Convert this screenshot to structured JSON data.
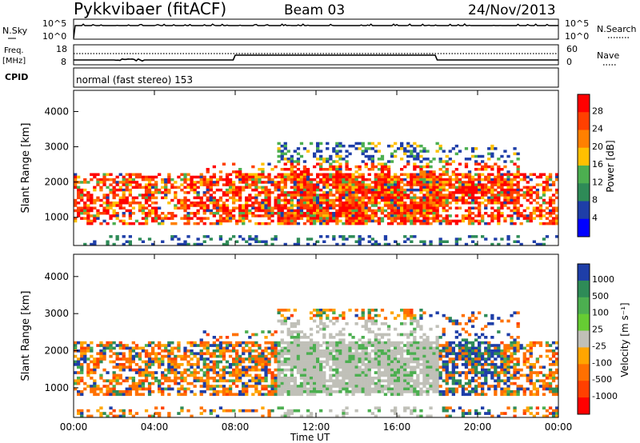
{
  "header": {
    "station": "Pykkvibaer (fitACF)",
    "beam": "Beam 03",
    "date": "24/Nov/2013"
  },
  "top_panels": {
    "nsky_label": "N.Sky",
    "nsky_top": "10^5",
    "nsky_bottom": "10^0",
    "nsearch_label": "N.Search",
    "nsearch_top": "10^5",
    "nsearch_bottom": "10^0",
    "freq_label_1": "Freq.",
    "freq_label_2": "[MHz]",
    "freq_ticks": [
      "18",
      "8"
    ],
    "nave_label": "Nave",
    "nave_ticks": [
      "60",
      "0"
    ],
    "cpid_label": "CPID",
    "cpid_text": "normal (fast stereo) 153"
  },
  "chart_data": [
    {
      "type": "heatmap",
      "name": "power",
      "ylabel": "Slant Range [km]",
      "yticks": [
        "4000",
        "3000",
        "2000",
        "1000"
      ],
      "ylim": [
        200,
        4600
      ],
      "xlim": [
        0,
        24
      ],
      "colorbar_label": "Power [dB]",
      "colorbar_ticks": [
        "28",
        "24",
        "20",
        "16",
        "12",
        "8",
        "4"
      ],
      "colorbar_colors": [
        "#ff0000",
        "#ff4000",
        "#ff8000",
        "#ffc000",
        "#4caf50",
        "#2e8b57",
        "#1e3ea8",
        "#0000ff"
      ]
    },
    {
      "type": "heatmap",
      "name": "velocity",
      "ylabel": "Slant Range [km]",
      "yticks": [
        "4000",
        "3000",
        "2000",
        "1000"
      ],
      "ylim": [
        200,
        4600
      ],
      "xlim": [
        0,
        24
      ],
      "colorbar_label": "Velocity [m s⁻¹]",
      "colorbar_ticks": [
        "1000",
        "500",
        "100",
        "25",
        "-25",
        "-100",
        "-500",
        "-1000"
      ],
      "colorbar_colors": [
        "#1e3ea8",
        "#2e8b57",
        "#4caf50",
        "#66cc33",
        "#c0c0b8",
        "#ffa500",
        "#ff7000",
        "#ff4000",
        "#ff0000"
      ]
    }
  ],
  "xaxis": {
    "ticks": [
      "00:00",
      "04:00",
      "08:00",
      "12:00",
      "16:00",
      "20:00",
      "00:00"
    ],
    "label": "Time UT"
  }
}
